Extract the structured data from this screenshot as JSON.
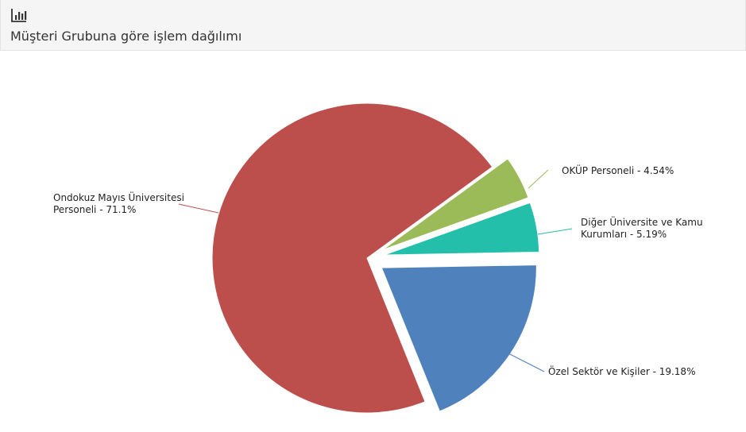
{
  "chart_data": {
    "type": "pie",
    "title": "Müşteri Grubuna göre işlem dağılımı",
    "categories": [
      "Ondokuz Mayıs Üniversitesi Personeli",
      "OKÜP Personeli",
      "Diğer Üniversite ve Kamu Kurumları",
      "Özel Sektör ve Kişiler"
    ],
    "values": [
      71.1,
      4.54,
      5.19,
      19.18
    ],
    "value_labels": [
      "Ondokuz Mayıs Üniversitesi Personeli - 71.1%",
      "OKÜP Personeli - 4.54%",
      "Diğer Üniversite ve Kamu Kurumları - 5.19%",
      "Özel Sektör ve Kişiler - 19.18%"
    ],
    "colors": [
      "#bc4f4c",
      "#9bbb59",
      "#23bfaa",
      "#4f81bd"
    ],
    "sliced": [
      false,
      true,
      true,
      true
    ]
  }
}
